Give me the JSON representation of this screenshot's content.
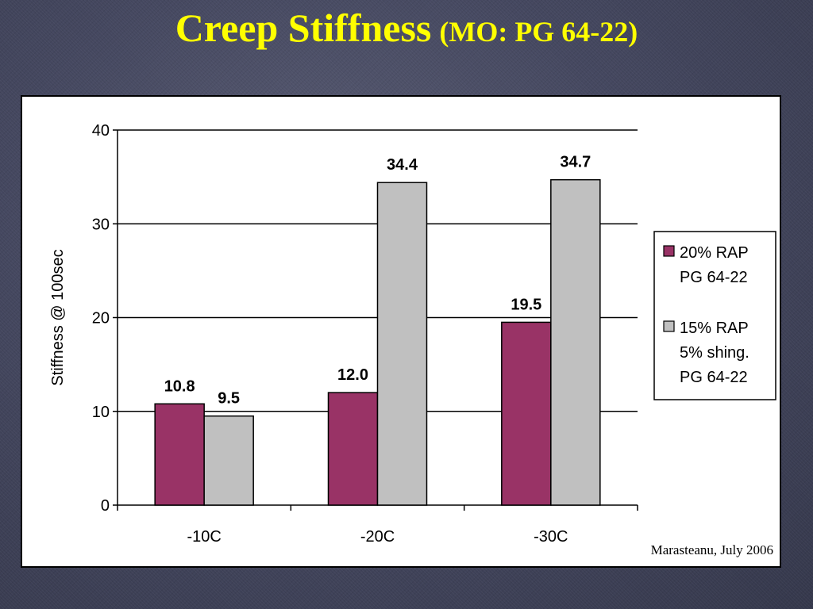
{
  "title": {
    "main": "Creep Stiffness",
    "sub": "(MO: PG 64-22)"
  },
  "credit": "Marasteanu, July 2006",
  "colors": {
    "background": "#454860",
    "title": "#ffff00",
    "series_1": "#993366",
    "series_2": "#c0c0c0"
  },
  "chart_data": {
    "type": "bar",
    "categories": [
      "-10C",
      "-20C",
      "-30C"
    ],
    "series": [
      {
        "name": "20% RAP PG 64-22",
        "legend_lines": [
          "20% RAP",
          "PG 64-22"
        ],
        "values": [
          10.8,
          12.0,
          19.5
        ],
        "labels": [
          "10.8",
          "12.0",
          "19.5"
        ],
        "color": "#993366"
      },
      {
        "name": "15% RAP 5% shing. PG 64-22",
        "legend_lines": [
          "15% RAP",
          "5% shing.",
          "PG 64-22"
        ],
        "values": [
          9.5,
          34.4,
          34.7
        ],
        "labels": [
          "9.5",
          "34.4",
          "34.7"
        ],
        "color": "#c0c0c0"
      }
    ],
    "xlabel": "",
    "ylabel": "Stiffness @ 100sec",
    "ylim": [
      0,
      40
    ],
    "yticks": [
      0,
      10,
      20,
      30,
      40
    ],
    "grid": true,
    "legend": "right"
  }
}
